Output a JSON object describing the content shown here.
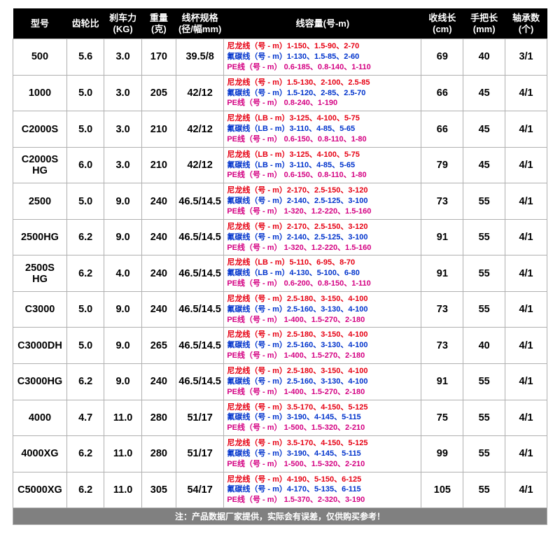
{
  "colors": {
    "header_bg": "#000000",
    "header_fg": "#ffffff",
    "row_border": "#b0b0b0",
    "nylon": "#e60012",
    "fluoro": "#0033cc",
    "pe": "#d40082",
    "footer_bg": "#808080"
  },
  "font": {
    "header_pt": 13,
    "cell_pt": 14.5,
    "capacity_pt": 11,
    "footer_pt": 12
  },
  "headers": [
    "型号",
    "齿轮比",
    "刹车力\n(KG)",
    "重量\n(克)",
    "线杯规格\n(径/幅mm)",
    "线容量(号-m)",
    "收线长\n(cm)",
    "手把长\n(mm)",
    "轴承数\n(个)"
  ],
  "rows": [
    {
      "model": "500",
      "gear": "5.6",
      "drag": "3.0",
      "wt": "170",
      "spool": "39.5/8",
      "cap": [
        {
          "t": "nylon",
          "label": "尼龙线（号 - m）",
          "val": "1-150、1.5-90、2-70"
        },
        {
          "t": "fluoro",
          "label": "氟碳线（号 - m）",
          "val": "1-130、1.5-85、2-60"
        },
        {
          "t": "pe",
          "label": "PE线（号 - m）",
          "val": " 0.6-185、0.8-140、1-110"
        }
      ],
      "retrieve": "69",
      "handle": "40",
      "bearing": "3/1"
    },
    {
      "model": "1000",
      "gear": "5.0",
      "drag": "3.0",
      "wt": "205",
      "spool": "42/12",
      "cap": [
        {
          "t": "nylon",
          "label": "尼龙线（号 - m）",
          "val": "1.5-130、2-100、2.5-85"
        },
        {
          "t": "fluoro",
          "label": "氟碳线（号 - m）",
          "val": "1.5-120、2-85、2.5-70"
        },
        {
          "t": "pe",
          "label": "PE线（号 - m）",
          "val": " 0.8-240、1-190"
        }
      ],
      "retrieve": "66",
      "handle": "45",
      "bearing": "4/1"
    },
    {
      "model": "C2000S",
      "gear": "5.0",
      "drag": "3.0",
      "wt": "210",
      "spool": "42/12",
      "cap": [
        {
          "t": "nylon",
          "label": "尼龙线（LB - m）",
          "val": "3-125、4-100、5-75"
        },
        {
          "t": "fluoro",
          "label": "氟碳线（LB - m）",
          "val": "3-110、4-85、5-65"
        },
        {
          "t": "pe",
          "label": "PE线（号 - m）",
          "val": " 0.6-150、0.8-110、1-80"
        }
      ],
      "retrieve": "66",
      "handle": "45",
      "bearing": "4/1"
    },
    {
      "model": "C2000S\nHG",
      "gear": "6.0",
      "drag": "3.0",
      "wt": "210",
      "spool": "42/12",
      "cap": [
        {
          "t": "nylon",
          "label": "尼龙线（LB - m）",
          "val": "3-125、4-100、5-75"
        },
        {
          "t": "fluoro",
          "label": "氟碳线（LB - m）",
          "val": "3-110、4-85、5-65"
        },
        {
          "t": "pe",
          "label": "PE线（号 - m）",
          "val": " 0.6-150、0.8-110、1-80"
        }
      ],
      "retrieve": "79",
      "handle": "45",
      "bearing": "4/1"
    },
    {
      "model": "2500",
      "gear": "5.0",
      "drag": "9.0",
      "wt": "240",
      "spool": "46.5/14.5",
      "cap": [
        {
          "t": "nylon",
          "label": "尼龙线（号 - m）",
          "val": "2-170、2.5-150、3-120"
        },
        {
          "t": "fluoro",
          "label": "氟碳线（号 - m）",
          "val": "2-140、2.5-125、3-100"
        },
        {
          "t": "pe",
          "label": "PE线（号 - m）",
          "val": " 1-320、1.2-220、1.5-160"
        }
      ],
      "retrieve": "73",
      "handle": "55",
      "bearing": "4/1"
    },
    {
      "model": "2500HG",
      "gear": "6.2",
      "drag": "9.0",
      "wt": "240",
      "spool": "46.5/14.5",
      "cap": [
        {
          "t": "nylon",
          "label": "尼龙线（号 - m）",
          "val": "2-170、2.5-150、3-120"
        },
        {
          "t": "fluoro",
          "label": "氟碳线（号 - m）",
          "val": "2-140、2.5-125、3-100"
        },
        {
          "t": "pe",
          "label": "PE线（号 - m）",
          "val": " 1-320、1.2-220、1.5-160"
        }
      ],
      "retrieve": "91",
      "handle": "55",
      "bearing": "4/1"
    },
    {
      "model": "2500S\nHG",
      "gear": "6.2",
      "drag": "4.0",
      "wt": "240",
      "spool": "46.5/14.5",
      "cap": [
        {
          "t": "nylon",
          "label": "尼龙线（LB - m）",
          "val": "5-110、6-95、8-70"
        },
        {
          "t": "fluoro",
          "label": "氟碳线（LB - m）",
          "val": "4-130、5-100、6-80"
        },
        {
          "t": "pe",
          "label": "PE线（号 - m）",
          "val": " 0.6-200、0.8-150、1-110"
        }
      ],
      "retrieve": "91",
      "handle": "55",
      "bearing": "4/1"
    },
    {
      "model": "C3000",
      "gear": "5.0",
      "drag": "9.0",
      "wt": "240",
      "spool": "46.5/14.5",
      "cap": [
        {
          "t": "nylon",
          "label": "尼龙线（号 - m）",
          "val": "2.5-180、3-150、4-100"
        },
        {
          "t": "fluoro",
          "label": "氟碳线（号 - m）",
          "val": "2.5-160、3-130、4-100"
        },
        {
          "t": "pe",
          "label": "PE线（号 - m）",
          "val": " 1-400、1.5-270、2-180"
        }
      ],
      "retrieve": "73",
      "handle": "55",
      "bearing": "4/1"
    },
    {
      "model": "C3000DH",
      "gear": "5.0",
      "drag": "9.0",
      "wt": "265",
      "spool": "46.5/14.5",
      "cap": [
        {
          "t": "nylon",
          "label": "尼龙线（号 - m）",
          "val": "2.5-180、3-150、4-100"
        },
        {
          "t": "fluoro",
          "label": "氟碳线（号 - m）",
          "val": "2.5-160、3-130、4-100"
        },
        {
          "t": "pe",
          "label": "PE线（号 - m）",
          "val": " 1-400、1.5-270、2-180"
        }
      ],
      "retrieve": "73",
      "handle": "40",
      "bearing": "4/1"
    },
    {
      "model": "C3000HG",
      "gear": "6.2",
      "drag": "9.0",
      "wt": "240",
      "spool": "46.5/14.5",
      "cap": [
        {
          "t": "nylon",
          "label": "尼龙线（号 - m）",
          "val": "2.5-180、3-150、4-100"
        },
        {
          "t": "fluoro",
          "label": "氟碳线（号 - m）",
          "val": "2.5-160、3-130、4-100"
        },
        {
          "t": "pe",
          "label": "PE线（号 - m）",
          "val": " 1-400、1.5-270、2-180"
        }
      ],
      "retrieve": "91",
      "handle": "55",
      "bearing": "4/1"
    },
    {
      "model": "4000",
      "gear": "4.7",
      "drag": "11.0",
      "wt": "280",
      "spool": "51/17",
      "cap": [
        {
          "t": "nylon",
          "label": "尼龙线（号 - m）",
          "val": "3.5-170、4-150、5-125"
        },
        {
          "t": "fluoro",
          "label": "氟碳线（号 - m）",
          "val": "3-190、4-145、5-115"
        },
        {
          "t": "pe",
          "label": "PE线（号 - m）",
          "val": " 1-500、1.5-320、2-210"
        }
      ],
      "retrieve": "75",
      "handle": "55",
      "bearing": "4/1"
    },
    {
      "model": "4000XG",
      "gear": "6.2",
      "drag": "11.0",
      "wt": "280",
      "spool": "51/17",
      "cap": [
        {
          "t": "nylon",
          "label": "尼龙线（号 - m）",
          "val": "3.5-170、4-150、5-125"
        },
        {
          "t": "fluoro",
          "label": "氟碳线（号 - m）",
          "val": "3-190、4-145、5-115"
        },
        {
          "t": "pe",
          "label": "PE线（号 - m）",
          "val": " 1-500、1.5-320、2-210"
        }
      ],
      "retrieve": "99",
      "handle": "55",
      "bearing": "4/1"
    },
    {
      "model": "C5000XG",
      "gear": "6.2",
      "drag": "11.0",
      "wt": "305",
      "spool": "54/17",
      "cap": [
        {
          "t": "nylon",
          "label": "尼龙线（号 - m）",
          "val": "4-190、5-150、6-125"
        },
        {
          "t": "fluoro",
          "label": "氟碳线（号 - m）",
          "val": "4-170、5-135、6-115"
        },
        {
          "t": "pe",
          "label": "PE线（号 - m）",
          "val": " 1.5-370、2-320、3-190"
        }
      ],
      "retrieve": "105",
      "handle": "55",
      "bearing": "4/1"
    }
  ],
  "footer": "注：产品数据厂家提供，实际会有误差，仅供购买参考！"
}
